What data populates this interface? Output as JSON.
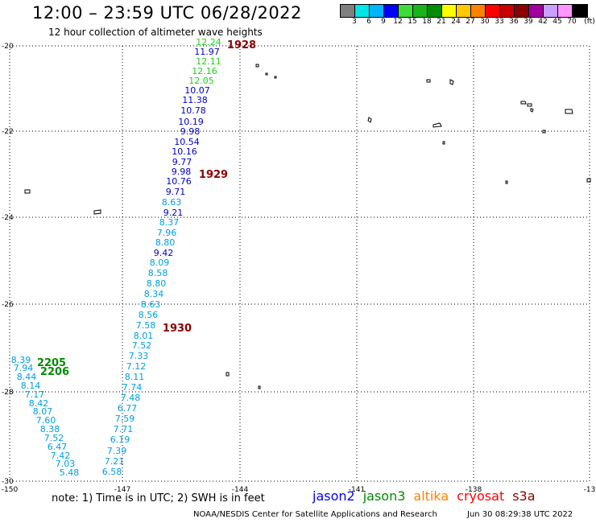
{
  "header": {
    "title": "12:00 – 23:59 UTC 06/28/2022",
    "subtitle": "12 hour collection of altimeter wave heights"
  },
  "legend": {
    "colors": [
      "#808080",
      "#00e5e5",
      "#00b4ff",
      "#0000ff",
      "#3cdc3c",
      "#19b419",
      "#008c00",
      "#ffff00",
      "#ffc800",
      "#ff8200",
      "#ff0000",
      "#c80000",
      "#8c0000",
      "#a000a0",
      "#c8a0ff",
      "#ff96ff",
      "#000000"
    ],
    "labels": [
      "3",
      "6",
      "9",
      "12",
      "15",
      "18",
      "21",
      "24",
      "27",
      "30",
      "33",
      "36",
      "39",
      "42",
      "45",
      "70",
      "(ft)"
    ]
  },
  "axes": {
    "x_ticks": [
      "-150",
      "-147",
      "-144",
      "-141",
      "-138",
      "-13"
    ],
    "y_ticks": [
      "-20",
      "-22",
      "-24",
      "-26",
      "-28",
      "-30"
    ]
  },
  "tracks": [
    {
      "color_name": "jason3-green",
      "color": "#1bd11b",
      "values": [
        "12.24",
        "12.11",
        "12.16",
        "12.05"
      ]
    },
    {
      "color_name": "jason2-blue",
      "color": "#0000c8",
      "values": [
        "11.97",
        "10.07",
        "11.38",
        "10.78",
        "10.19",
        "9.98",
        "10.54",
        "10.16",
        "9.77",
        "9.98",
        "10.76",
        "9.71",
        "9.21",
        "9.42"
      ]
    },
    {
      "color_name": "light-blue",
      "color": "#00a0e0",
      "values": [
        "8.63",
        "8.37",
        "7.96",
        "8.80",
        "8.09",
        "8.58",
        "8.80",
        "8.34",
        "8.63",
        "8.56",
        "7.58",
        "8.01",
        "7.52",
        "7.33",
        "7.12",
        "8.11",
        "7.74",
        "7.48",
        "6.77",
        "7.59",
        "7.71",
        "6.19",
        "7.39",
        "7.21",
        "6.58"
      ]
    },
    {
      "color_name": "light-blue",
      "color": "#00a0e0",
      "values": [
        "8.39",
        "7.94",
        "8.44",
        "8.14",
        "7.17",
        "8.42",
        "8.07",
        "7.60",
        "8.38",
        "7.52",
        "6.47",
        "7.42",
        "7.03",
        "5.48"
      ]
    }
  ],
  "time_labels": [
    {
      "text": "1928",
      "color": "#8c0000"
    },
    {
      "text": "1929",
      "color": "#8c0000"
    },
    {
      "text": "1930",
      "color": "#8c0000"
    },
    {
      "text": "2205",
      "color": "#008c00"
    },
    {
      "text": "2206",
      "color": "#008c00"
    }
  ],
  "footer": {
    "note": "note:  1) Time is in UTC;  2) SWH is in feet",
    "satellites": [
      {
        "name": "jason2",
        "color": "#0000ff"
      },
      {
        "name": "jason3",
        "color": "#008c00"
      },
      {
        "name": "altika",
        "color": "#ff8200"
      },
      {
        "name": "cryosat",
        "color": "#ff0000"
      },
      {
        "name": "s3a",
        "color": "#8c0000"
      }
    ],
    "credit": "NOAA/NESDIS Center for Satellite Applications and Research",
    "timestamp": "Jun 30 08:29:38 UTC 2022"
  }
}
